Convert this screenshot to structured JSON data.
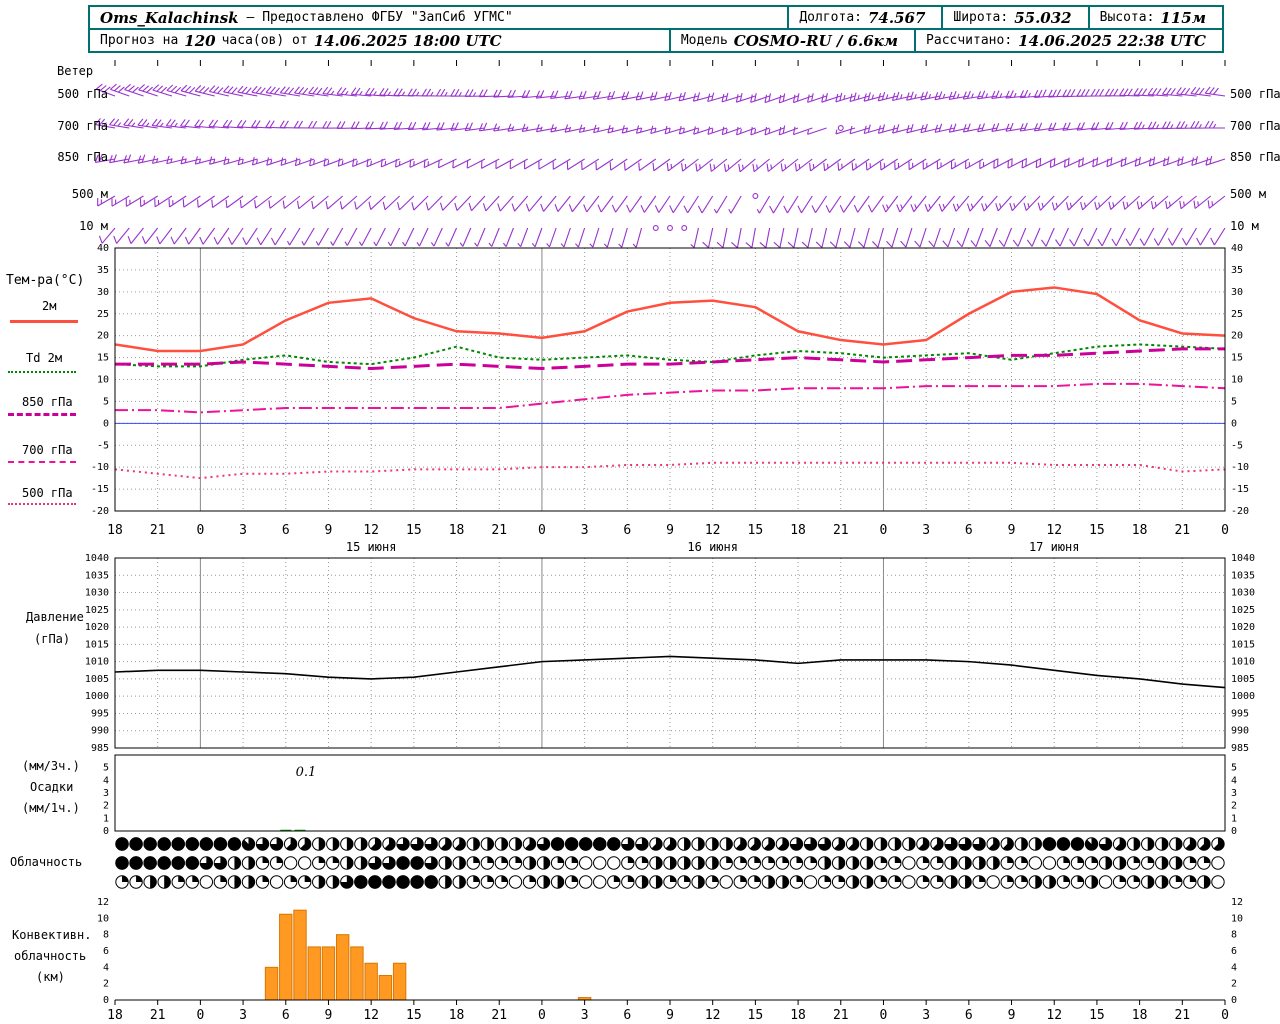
{
  "header": {
    "station": "Oms_Kalachinsk",
    "provider": "— Предоставлено ФГБУ \"ЗапСиб УГМС\"",
    "lon_label": "Долгота:",
    "lon_value": "74.567",
    "lat_label": "Широта:",
    "lat_value": "55.032",
    "alt_label": "Высота:",
    "alt_value": "115м",
    "forecast_prefix": "Прогноз на",
    "forecast_hours": "120",
    "forecast_suffix": "часа(ов) от",
    "forecast_value": "14.06.2025 18:00 UTC",
    "model_label": "Модель",
    "model_value": "COSMO-RU / 6.6км",
    "calc_label": "Рассчитано:",
    "calc_value": "14.06.2025 22:38 UTC"
  },
  "panels": {
    "wind_title": "Ветер",
    "temp_title": "Тем-ра(°C)",
    "pressure_title_line1": "Давление",
    "pressure_title_line2": "(гПа)",
    "precip_title_line1": "(мм/3ч.)",
    "precip_title_line2": "Осадки",
    "precip_title_line3": "(мм/1ч.)",
    "cloud_title": "Облачность",
    "conv_title_line1": "Конвективн.",
    "conv_title_line2": "облачность",
    "conv_title_line3": "(км)"
  },
  "colors": {
    "accent_teal": "#007070",
    "barb": "#9932cc",
    "t2m": "#ff4f3f",
    "td2m": "#008800",
    "t850": "#cc0099",
    "t700": "#ee1199",
    "t500": "#ee3377",
    "pressure_line": "#000000",
    "precip_bar": "#009900",
    "conv_fill": "#ff9922",
    "conv_stroke": "#d97700",
    "grid": "#999999",
    "day_grid": "#888888",
    "zero_line": "#3344ff",
    "frame": "#000000"
  },
  "chart_data": {
    "type": "meteogram",
    "time": {
      "step_hours": 3,
      "tick_labels": [
        "18",
        "21",
        "0",
        "3",
        "6",
        "9",
        "12",
        "15",
        "18",
        "21",
        "0",
        "3",
        "6",
        "9",
        "12",
        "15",
        "18",
        "21",
        "0",
        "3",
        "6",
        "9",
        "12",
        "15",
        "18",
        "21",
        "0"
      ],
      "date_labels": [
        {
          "label": "15 июня",
          "tick_index": 6
        },
        {
          "label": "16 июня",
          "tick_index": 14
        },
        {
          "label": "17 июня",
          "tick_index": 22
        }
      ]
    },
    "wind": {
      "units": "м/с",
      "levels": [
        {
          "name": "500 гПа",
          "dirs": [
            290,
            288,
            285,
            282,
            280,
            278,
            275,
            272,
            270,
            268,
            265,
            262,
            260,
            258,
            255,
            252,
            250,
            252,
            255,
            258,
            260,
            263,
            266,
            269,
            272,
            275,
            278
          ],
          "speeds": [
            16,
            16,
            15,
            15,
            14,
            14,
            13,
            12,
            12,
            11,
            11,
            10,
            10,
            9,
            9,
            10,
            10,
            11,
            12,
            12,
            13,
            13,
            14,
            14,
            15,
            15,
            16
          ]
        },
        {
          "name": "700 гПа",
          "dirs": [
            280,
            278,
            276,
            274,
            272,
            270,
            268,
            266,
            264,
            262,
            260,
            258,
            256,
            254,
            252,
            250,
            250,
            252,
            254,
            256,
            258,
            260,
            262,
            264,
            266,
            268,
            270
          ],
          "speeds": [
            12,
            12,
            11,
            11,
            10,
            10,
            10,
            9,
            9,
            9,
            8,
            8,
            8,
            8,
            8,
            8,
            9,
            0,
            9,
            10,
            10,
            10,
            11,
            11,
            11,
            12,
            12
          ]
        },
        {
          "name": "850 гПа",
          "dirs": [
            260,
            258,
            256,
            254,
            252,
            250,
            248,
            246,
            244,
            242,
            240,
            238,
            236,
            234,
            232,
            230,
            232,
            234,
            236,
            238,
            240,
            242,
            244,
            246,
            248,
            250,
            252
          ],
          "speeds": [
            9,
            9,
            8,
            8,
            8,
            7,
            7,
            7,
            6,
            6,
            6,
            6,
            6,
            6,
            7,
            7,
            7,
            8,
            8,
            8,
            8,
            9,
            9,
            9,
            9,
            10,
            10
          ]
        },
        {
          "name": "500 м",
          "dirs": [
            240,
            238,
            236,
            234,
            232,
            230,
            228,
            226,
            224,
            222,
            220,
            218,
            216,
            214,
            212,
            210,
            212,
            214,
            216,
            218,
            220,
            222,
            224,
            226,
            228,
            230,
            232
          ],
          "speeds": [
            7,
            7,
            6,
            6,
            6,
            5,
            5,
            5,
            5,
            4,
            4,
            4,
            5,
            5,
            5,
            0,
            6,
            6,
            6,
            7,
            7,
            7,
            7,
            8,
            8,
            8,
            8
          ]
        },
        {
          "name": "10 м",
          "dirs": [
            220,
            218,
            216,
            214,
            212,
            210,
            208,
            206,
            204,
            202,
            200,
            198,
            196,
            194,
            192,
            190,
            192,
            194,
            196,
            198,
            200,
            202,
            204,
            206,
            208,
            210,
            212
          ],
          "speeds": [
            5,
            5,
            4,
            4,
            4,
            3,
            3,
            3,
            3,
            2,
            3,
            3,
            3,
            0,
            4,
            4,
            4,
            5,
            5,
            5,
            5,
            5,
            4,
            4,
            4,
            4,
            4
          ]
        }
      ]
    },
    "temp": {
      "ylim": [
        -20,
        40
      ],
      "step": 5,
      "series": [
        {
          "name": "2м",
          "color": "#ff4f3f",
          "width": 2.5,
          "dash": "",
          "values": [
            18,
            16.5,
            16.5,
            18,
            23.5,
            27.5,
            28.5,
            24,
            21,
            20.5,
            19.5,
            21,
            25.5,
            27.5,
            28,
            26.5,
            21,
            19,
            18,
            19,
            25,
            30,
            31,
            29.5,
            23.5,
            20.5,
            20
          ]
        },
        {
          "name": "Td 2м",
          "color": "#008800",
          "width": 2,
          "dash": "3,3",
          "values": [
            13.5,
            13,
            13,
            14.5,
            15.5,
            14,
            13.5,
            15,
            17.5,
            15,
            14.5,
            15,
            15.5,
            14.5,
            14,
            15.5,
            16.5,
            16,
            15,
            15.5,
            16,
            14.5,
            16,
            17.5,
            18,
            17.5,
            17
          ]
        },
        {
          "name": "850 гПа",
          "color": "#cc0099",
          "width": 3,
          "dash": "16,7",
          "values": [
            13.5,
            13.5,
            13.5,
            14,
            13.5,
            13,
            12.5,
            13,
            13.5,
            13,
            12.5,
            13,
            13.5,
            13.5,
            14,
            14.5,
            15,
            14.5,
            14,
            14.5,
            15,
            15.5,
            15.5,
            16,
            16.5,
            17,
            17
          ]
        },
        {
          "name": "700 гПа",
          "color": "#ee1199",
          "width": 2,
          "dash": "13,4,2,4",
          "values": [
            3,
            3,
            2.5,
            3,
            3.5,
            3.5,
            3.5,
            3.5,
            3.5,
            3.5,
            4.5,
            5.5,
            6.5,
            7,
            7.5,
            7.5,
            8,
            8,
            8,
            8.5,
            8.5,
            8.5,
            8.5,
            9,
            9,
            8.5,
            8
          ]
        },
        {
          "name": "500 гПа",
          "color": "#ee3377",
          "width": 2,
          "dash": "2,4",
          "values": [
            -10.5,
            -11.5,
            -12.5,
            -11.5,
            -11.5,
            -11,
            -11,
            -10.5,
            -10.5,
            -10.5,
            -10,
            -10,
            -9.5,
            -9.5,
            -9,
            -9,
            -9,
            -9,
            -9,
            -9,
            -9,
            -9,
            -9.5,
            -9.5,
            -9.5,
            -11,
            -10.5
          ]
        }
      ]
    },
    "pressure": {
      "ylim": [
        985,
        1040
      ],
      "step": 5,
      "values": [
        1007,
        1007.5,
        1007.5,
        1007,
        1006.5,
        1005.5,
        1005,
        1005.5,
        1007,
        1008.5,
        1010,
        1010.5,
        1011,
        1011.5,
        1011,
        1010.5,
        1009.5,
        1010.5,
        1010.5,
        1010.5,
        1010,
        1009,
        1007.5,
        1006,
        1005,
        1003.5,
        1002.5
      ]
    },
    "precip": {
      "ylim": [
        0,
        6
      ],
      "step": 1,
      "annotation": "0.1",
      "annotation_hour_index": 13,
      "bars": [
        [
          12,
          0.1
        ],
        [
          13,
          0.1
        ]
      ]
    },
    "cloud": {
      "max_okta": 8,
      "rows": [
        "8888888887665544445566655444456888886655444455556665544445566655448887654444555",
        "8888886644220022446688644222244220002244444222222244442202244442200222442244220",
        "2244220244202244688888844222024420022442242022442022442202244202244224022442240"
      ]
    },
    "conv": {
      "ylim": [
        0,
        12
      ],
      "step": 2,
      "bars": [
        [
          11,
          4
        ],
        [
          12,
          10.5
        ],
        [
          13,
          11
        ],
        [
          14,
          6.5
        ],
        [
          15,
          6.5
        ],
        [
          16,
          8
        ],
        [
          17,
          6.5
        ],
        [
          18,
          4.5
        ],
        [
          19,
          3
        ],
        [
          20,
          4.5
        ],
        [
          33,
          0.3
        ]
      ]
    }
  }
}
